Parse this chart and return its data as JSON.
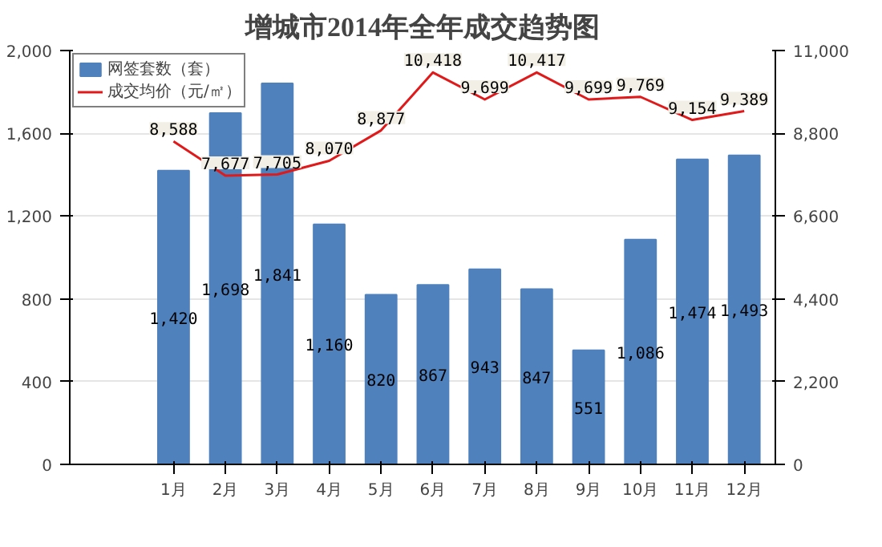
{
  "chart_data": {
    "type": "bar",
    "title": "增城市2014年全年成交趋势图",
    "categories": [
      "1月",
      "2月",
      "3月",
      "4月",
      "5月",
      "6月",
      "7月",
      "8月",
      "9月",
      "10月",
      "11月",
      "12月"
    ],
    "series": [
      {
        "name": "网签套数（套）",
        "color": "#4f81bd",
        "values": [
          1420,
          1698,
          1841,
          1160,
          820,
          867,
          943,
          847,
          551,
          1086,
          1474,
          1493
        ],
        "value_labels": [
          "1,420",
          "1,698",
          "1,841",
          "1,160",
          "820",
          "867",
          "943",
          "847",
          "551",
          "1,086",
          "1,474",
          "1,493"
        ]
      },
      {
        "name": "成交均价（元/㎡）",
        "type": "line",
        "axis": "y2",
        "color": "#e0191a",
        "values": [
          8588,
          7677,
          7705,
          8070,
          8877,
          10418,
          9699,
          10417,
          9699,
          9769,
          9154,
          9389
        ],
        "value_labels": [
          "8,588",
          "7,677",
          "7,705",
          "8,070",
          "8,877",
          "10,418",
          "9,699",
          "10,417",
          "9,699",
          "9,769",
          "9,154",
          "9,389"
        ]
      }
    ],
    "ylim": [
      0,
      2000
    ],
    "yticks": [
      0,
      400,
      800,
      {
        "value": 1200,
        "label": "1,200"
      },
      {
        "value": 1600,
        "label": "1,600"
      },
      {
        "value": 2000,
        "label": "2,000"
      }
    ],
    "y2lim": [
      0,
      11000
    ],
    "y2ticks": [
      0,
      {
        "value": 2200,
        "label": "2,200"
      },
      {
        "value": 4400,
        "label": "4,400"
      },
      {
        "value": 6600,
        "label": "6,600"
      },
      {
        "value": 8800,
        "label": "8,800"
      },
      {
        "value": 11000,
        "label": "11,000"
      }
    ],
    "grid": "y",
    "legend": "top left",
    "marker": "none",
    "line_style": "solid"
  }
}
